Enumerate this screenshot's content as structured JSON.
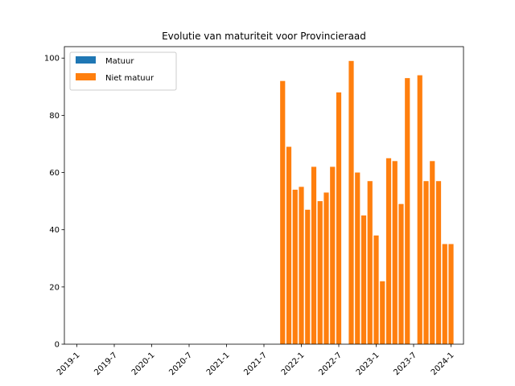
{
  "chart_data": {
    "type": "bar",
    "stacked": true,
    "title": "Evolutie van maturiteit voor Provincieraad",
    "xlabel": "",
    "ylabel": "",
    "x_ticks": [
      "2019-1",
      "2019-7",
      "2020-1",
      "2020-7",
      "2021-1",
      "2021-7",
      "2022-1",
      "2022-7",
      "2023-1",
      "2023-7",
      "2024-1"
    ],
    "y_ticks": [
      0,
      20,
      40,
      60,
      80,
      100
    ],
    "xlim": [
      "2018-11",
      "2024-3"
    ],
    "ylim": [
      0,
      104
    ],
    "legend_position": "upper left",
    "grid": false,
    "categories": [
      "2021-10",
      "2021-11",
      "2021-12",
      "2022-1",
      "2022-2",
      "2022-3",
      "2022-4",
      "2022-5",
      "2022-6",
      "2022-7",
      "2022-9",
      "2022-10",
      "2022-11",
      "2022-12",
      "2023-1",
      "2023-2",
      "2023-3",
      "2023-4",
      "2023-5",
      "2023-6",
      "2023-8",
      "2023-9",
      "2023-10",
      "2023-11",
      "2023-12",
      "2024-1"
    ],
    "series": [
      {
        "name": "Matuur",
        "color": "#1f77b4",
        "values": [
          0,
          0,
          0,
          0,
          0,
          0,
          0,
          0,
          0,
          0,
          0,
          0,
          0,
          0,
          0,
          0,
          0,
          0,
          0,
          0,
          0,
          0,
          0,
          0,
          0,
          0
        ]
      },
      {
        "name": "Niet matuur",
        "color": "#ff7f0e",
        "values": [
          92,
          69,
          54,
          55,
          47,
          62,
          50,
          53,
          62,
          88,
          99,
          60,
          45,
          57,
          38,
          22,
          65,
          64,
          49,
          93,
          94,
          57,
          64,
          57,
          35,
          35
        ]
      }
    ]
  }
}
